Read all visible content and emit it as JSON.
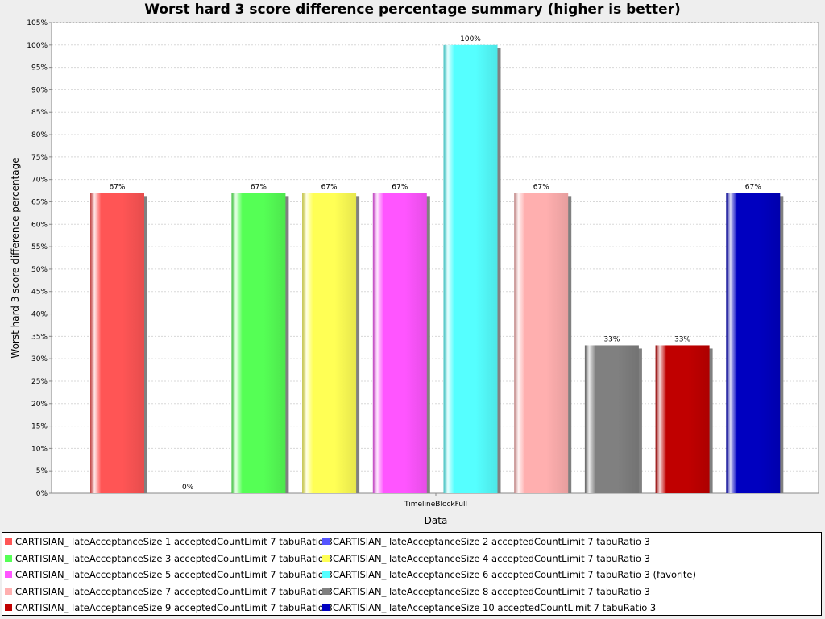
{
  "chart_data": {
    "type": "bar",
    "title": "Worst hard 3 score difference percentage summary (higher is better)",
    "xlabel": "Data",
    "ylabel": "Worst hard 3 score difference percentage",
    "categories": [
      "TimelineBlockFull"
    ],
    "ylim": [
      0,
      105
    ],
    "ytick_step": 5,
    "grid": true,
    "legend_position": "bottom",
    "series": [
      {
        "name": "CARTISIAN_ lateAcceptanceSize 1 acceptedCountLimit 7 tabuRatio 3",
        "value": 67,
        "label": "67%",
        "color": "#ff5555"
      },
      {
        "name": "CARTISIAN_ lateAcceptanceSize 2 acceptedCountLimit 7 tabuRatio 3",
        "value": 0,
        "label": "0%",
        "color": "#5555ff"
      },
      {
        "name": "CARTISIAN_ lateAcceptanceSize 3 acceptedCountLimit 7 tabuRatio 3",
        "value": 67,
        "label": "67%",
        "color": "#55ff55"
      },
      {
        "name": "CARTISIAN_ lateAcceptanceSize 4 acceptedCountLimit 7 tabuRatio 3",
        "value": 67,
        "label": "67%",
        "color": "#ffff55"
      },
      {
        "name": "CARTISIAN_ lateAcceptanceSize 5 acceptedCountLimit 7 tabuRatio 3",
        "value": 67,
        "label": "67%",
        "color": "#ff55ff"
      },
      {
        "name": "CARTISIAN_ lateAcceptanceSize 6 acceptedCountLimit 7 tabuRatio 3 (favorite)",
        "value": 100,
        "label": "100%",
        "color": "#55ffff"
      },
      {
        "name": "CARTISIAN_ lateAcceptanceSize 7 acceptedCountLimit 7 tabuRatio 3",
        "value": 67,
        "label": "67%",
        "color": "#ffafaf"
      },
      {
        "name": "CARTISIAN_ lateAcceptanceSize 8 acceptedCountLimit 7 tabuRatio 3",
        "value": 33,
        "label": "33%",
        "color": "#808080"
      },
      {
        "name": "CARTISIAN_ lateAcceptanceSize 9 acceptedCountLimit 7 tabuRatio 3",
        "value": 33,
        "label": "33%",
        "color": "#c00000"
      },
      {
        "name": "CARTISIAN_ lateAcceptanceSize 10 acceptedCountLimit 7 tabuRatio 3",
        "value": 67,
        "label": "67%",
        "color": "#0000c0"
      }
    ]
  }
}
